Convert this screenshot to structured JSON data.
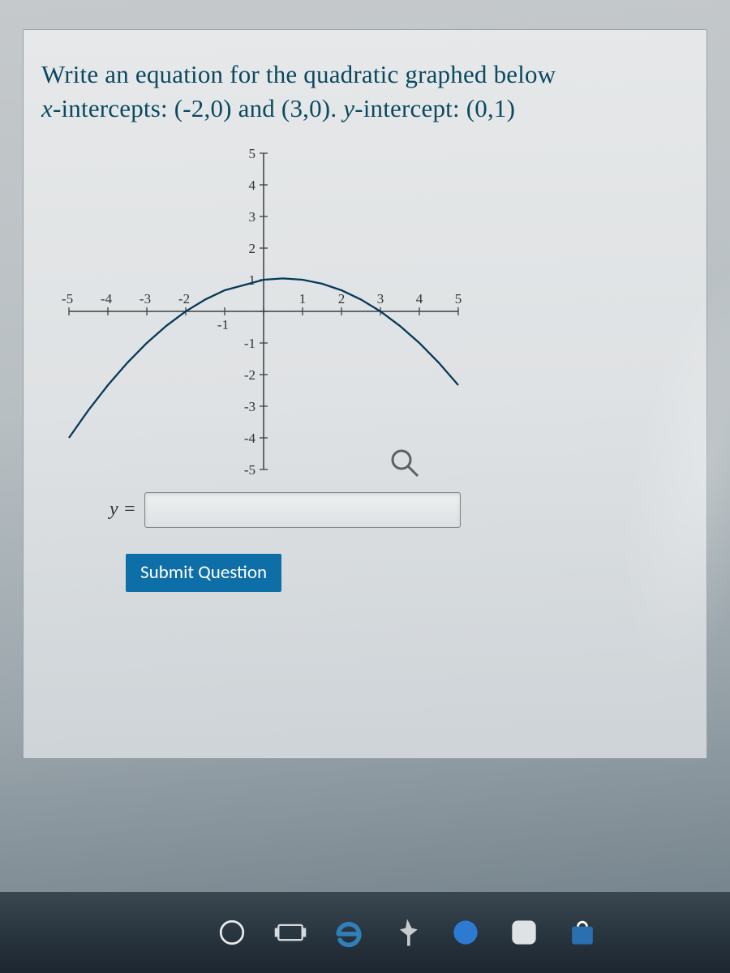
{
  "question": {
    "line1_pre": "Write an equation for the quadratic graphed below",
    "line2_pre": "",
    "x_var": "x",
    "line2_mid1": "-intercepts: (-2,0) and (3,0). ",
    "y_var": "y",
    "line2_mid2": "-intercept: (0,1)",
    "text_color": "#0b4960",
    "fontsize": 31
  },
  "chart": {
    "type": "line",
    "xlim": [
      -5,
      5
    ],
    "ylim": [
      -5,
      5
    ],
    "xtick_step": 1,
    "ytick_step": 1,
    "x_tick_labels": [
      "-5",
      "-4",
      "-3",
      "-2",
      "-1",
      "",
      "1",
      "2",
      "3",
      "4",
      "5"
    ],
    "y_tick_labels": [
      "-5",
      "-4",
      "-3",
      "-2",
      "-1",
      "",
      "1",
      "2",
      "3",
      "4",
      "5"
    ],
    "tick_fontsize": 17,
    "axis_color": "#3a4044",
    "background_color": "transparent",
    "curve": {
      "color": "#063a5a",
      "width": 2.3,
      "a": -0.16667,
      "roots": [
        -2,
        3
      ],
      "x_values": [
        -5.0,
        -4.5,
        -4.0,
        -3.5,
        -3.0,
        -2.5,
        -2.0,
        -1.5,
        -1.0,
        0.0,
        0.5,
        1.0,
        1.5,
        2.0,
        2.5,
        3.0,
        3.5,
        4.0,
        4.5,
        5.0
      ],
      "y_values": [
        -4.0,
        -3.125,
        -2.333,
        -1.625,
        -1.0,
        -0.458,
        0.0,
        0.375,
        0.667,
        1.0,
        1.042,
        1.0,
        0.875,
        0.667,
        0.375,
        0.0,
        -0.458,
        -1.0,
        -1.625,
        -2.333
      ]
    },
    "magnifier_icon_color": "#5a6266"
  },
  "answer": {
    "label": "y =",
    "value": "",
    "placeholder": ""
  },
  "submit": {
    "label": "Submit Question",
    "bg": "#0d6ea8",
    "fg": "#ffffff"
  },
  "taskbar": {
    "bg_top": "#3a4650",
    "bg_bottom": "#1b2530",
    "icons": [
      {
        "name": "cortana-icon",
        "shape": "ring",
        "color": "#e8eaec"
      },
      {
        "name": "taskview-icon",
        "shape": "taskview",
        "color": "#d7dadd"
      },
      {
        "name": "edge-legacy-icon",
        "shape": "e",
        "color": "#2f7fb8"
      },
      {
        "name": "pin-icon",
        "shape": "pin",
        "color": "#c9ccce"
      },
      {
        "name": "edge-icon",
        "shape": "swirl",
        "color1": "#2fb6c9",
        "color2": "#2c7bd1"
      },
      {
        "name": "app-icon",
        "shape": "rounded",
        "color": "#dfe2e4"
      },
      {
        "name": "store-icon",
        "shape": "bag",
        "color": "#2a6fb0"
      }
    ]
  }
}
